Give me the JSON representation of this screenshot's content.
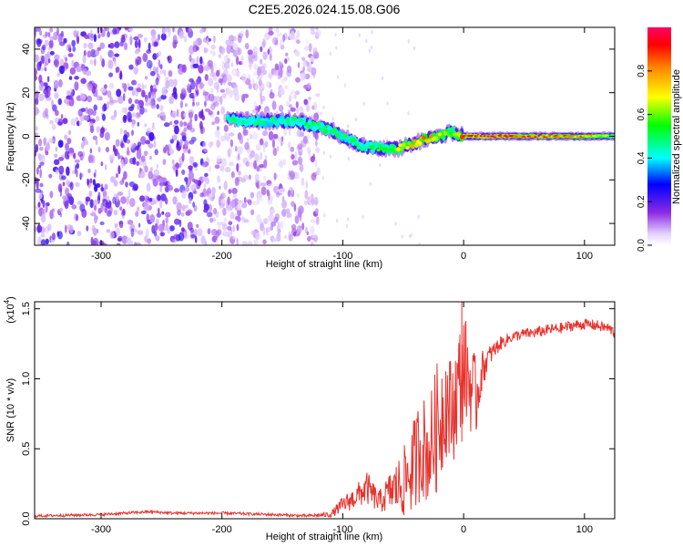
{
  "title": "C2E5.2026.024.15.08.G06",
  "chart_data": [
    {
      "type": "heatmap",
      "xlabel": "Height of straight line (km)",
      "ylabel": "Frequency (Hz)",
      "xlim": [
        -355,
        125
      ],
      "ylim": [
        -50,
        50
      ],
      "x_ticks": [
        -300,
        -200,
        -100,
        0,
        100
      ],
      "y_ticks": [
        -40,
        -20,
        0,
        20,
        40
      ],
      "x_tick_labels": [
        "-300",
        "-200",
        "-100",
        "0",
        "100"
      ],
      "y_tick_labels": [
        "-40",
        "-20",
        "0",
        "20",
        "40"
      ],
      "colorbar": {
        "label": "Normalized spectral amplitude",
        "range": [
          0,
          1
        ],
        "ticks": [
          0.0,
          0.2,
          0.4,
          0.6,
          0.8
        ],
        "tick_labels": [
          "0.0",
          "0.2",
          "0.4",
          "0.6",
          "0.8"
        ]
      },
      "noise_region_x": [
        -355,
        -120
      ],
      "ridge": {
        "x": [
          -195,
          -180,
          -160,
          -140,
          -125,
          -110,
          -100,
          -90,
          -80,
          -70,
          -60,
          -50,
          -40,
          -30,
          -20,
          -12,
          -5,
          0,
          20,
          50,
          80,
          100,
          125
        ],
        "freq": [
          8,
          7,
          7,
          7,
          5,
          3,
          0,
          -3,
          -5,
          -5,
          -6,
          -5,
          -3,
          -1,
          0,
          2,
          1,
          0,
          0,
          0,
          0,
          0,
          0
        ],
        "amplitude": [
          0.5,
          0.5,
          0.45,
          0.5,
          0.5,
          0.5,
          0.45,
          0.5,
          0.5,
          0.55,
          0.6,
          0.7,
          0.75,
          0.8,
          0.7,
          0.6,
          0.7,
          0.9,
          0.95,
          0.9,
          0.85,
          0.8,
          0.6
        ]
      }
    },
    {
      "type": "line",
      "xlabel": "Height of straight line (km)",
      "ylabel": "SNR (10 * v/v)",
      "scale_label": "(x10",
      "scale_exponent": "4",
      "xlim": [
        -355,
        125
      ],
      "ylim": [
        0,
        1.55
      ],
      "x_ticks": [
        -300,
        -200,
        -100,
        0,
        100
      ],
      "y_ticks": [
        0.0,
        0.5,
        1.0,
        1.5
      ],
      "x_tick_labels": [
        "-300",
        "-200",
        "-100",
        "0",
        "100"
      ],
      "y_tick_labels": [
        "0.0",
        "0.5",
        "1.0",
        "1.5"
      ],
      "series": [
        {
          "color": "#e8322d",
          "x": [
            -355,
            -300,
            -260,
            -240,
            -200,
            -160,
            -130,
            -110,
            -100,
            -90,
            -80,
            -70,
            -60,
            -50,
            -40,
            -35,
            -30,
            -20,
            -15,
            -10,
            0,
            10,
            15,
            20,
            30,
            40,
            50,
            60,
            70,
            80,
            90,
            100,
            110,
            120,
            125
          ],
          "values": [
            0.02,
            0.03,
            0.05,
            0.04,
            0.04,
            0.03,
            0.02,
            0.03,
            0.1,
            0.15,
            0.22,
            0.12,
            0.2,
            0.25,
            0.4,
            0.55,
            0.45,
            0.7,
            0.85,
            0.75,
            1.1,
            0.85,
            1.05,
            1.15,
            1.25,
            1.3,
            1.32,
            1.33,
            1.35,
            1.36,
            1.38,
            1.39,
            1.38,
            1.36,
            1.33
          ],
          "spread": [
            0.01,
            0.01,
            0.01,
            0.01,
            0.01,
            0.01,
            0.01,
            0.02,
            0.06,
            0.08,
            0.12,
            0.08,
            0.15,
            0.25,
            0.35,
            0.4,
            0.35,
            0.5,
            0.4,
            0.4,
            0.4,
            0.3,
            0.15,
            0.08,
            0.05,
            0.04,
            0.04,
            0.04,
            0.04,
            0.04,
            0.04,
            0.04,
            0.04,
            0.04,
            0.04
          ]
        }
      ]
    }
  ]
}
